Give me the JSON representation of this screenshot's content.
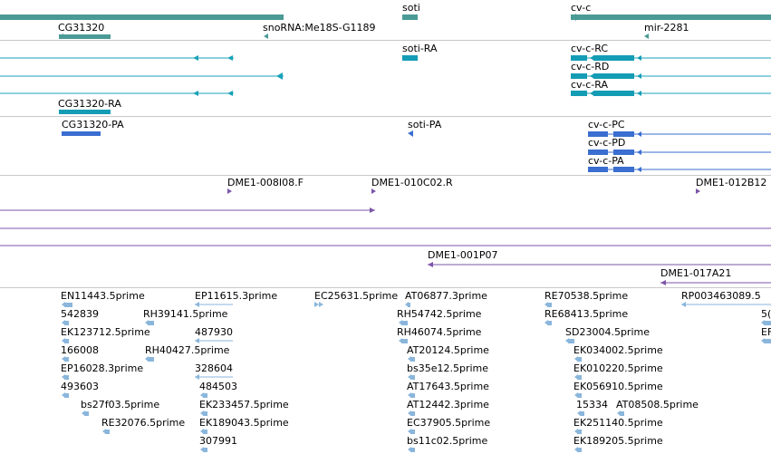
{
  "colors": {
    "gene": "#4a9a96",
    "transcript": "#19a2b8",
    "transcript_block": "#149cb5",
    "protein": "#3a6ed0",
    "clone": "#7b55a8",
    "est": "#8ab6dc",
    "separator": "#c8c8c8"
  },
  "tracks": {
    "genes": {
      "labels": [
        "soti",
        "cv-c",
        "CG31320",
        "snoRNA:Me18S-G1189",
        "mir-2281"
      ]
    },
    "transcripts": {
      "labels": [
        "soti-RA",
        "cv-c-RC",
        "cv-c-RD",
        "cv-c-RA",
        "CG31320-RA"
      ]
    },
    "proteins": {
      "labels": [
        "CG31320-PA",
        "soti-PA",
        "cv-c-PC",
        "cv-c-PD",
        "cv-c-PA"
      ]
    },
    "clones": {
      "labels": [
        "DME1-008I08.F",
        "DME1-010C02.R",
        "DME1-012B12",
        "DME1-001P07",
        "DME1-017A21"
      ]
    },
    "ests": {
      "labels": [
        "EN11443.5prime",
        "EP11615.3prime",
        "EC25631.5prime",
        "AT06877.3prime",
        "RE70538.5prime",
        "RP003463089.5",
        "542839",
        "RH39141.5prime",
        "RH54742.5prime",
        "RE68413.5prime",
        "5(",
        "EK123712.5prime",
        "487930",
        "RH46074.5prime",
        "SD23004.5prime",
        "EF",
        "166008",
        "RH40427.5prime",
        "AT20124.5prime",
        "EK034002.5prime",
        "EP16028.3prime",
        "328604",
        "bs35e12.5prime",
        "EK010220.5prime",
        "493603",
        "484503",
        "AT17643.5prime",
        "EK056910.5prime",
        "bs27f03.5prime",
        "EK233457.5prime",
        "AT12442.3prime",
        "15334",
        "AT08508.5prime",
        "RE32076.5prime",
        "EK189043.5prime",
        "EC37905.5prime",
        "EK251140.5prime",
        "307991",
        "bs11c02.5prime",
        "EK189205.5prime"
      ]
    }
  }
}
